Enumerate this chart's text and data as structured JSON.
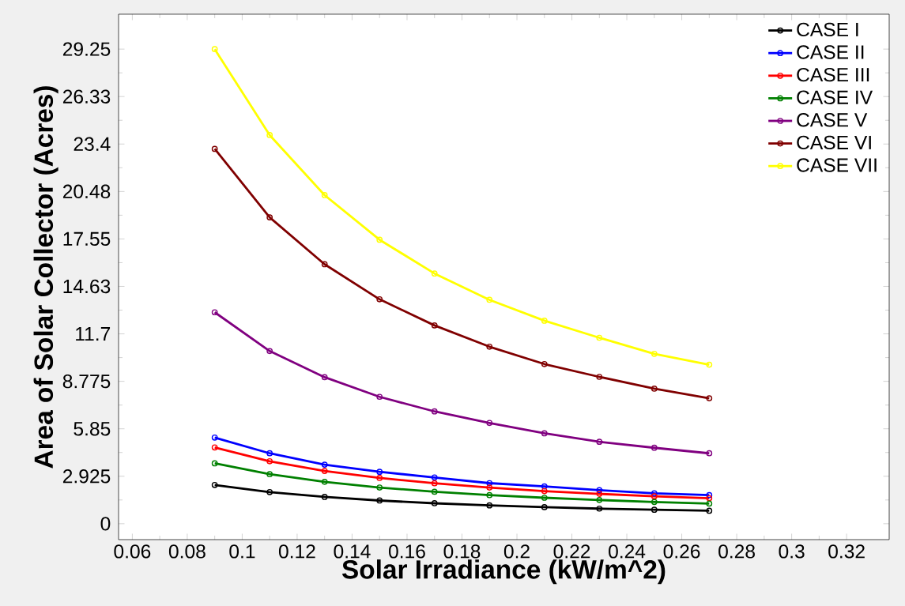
{
  "chart_data": {
    "type": "line",
    "xlabel": "Solar Irradiance (kW/m^2)",
    "ylabel": "Area of Solar Collector (Acres)",
    "x": [
      0.09,
      0.11,
      0.13,
      0.15,
      0.17,
      0.19,
      0.21,
      0.23,
      0.25,
      0.27
    ],
    "series": [
      {
        "name": "CASE I",
        "color": "#000000",
        "values": [
          2.39,
          1.95,
          1.65,
          1.43,
          1.26,
          1.13,
          1.02,
          0.93,
          0.86,
          0.8
        ]
      },
      {
        "name": "CASE II",
        "color": "#0000ff",
        "values": [
          5.31,
          4.34,
          3.64,
          3.2,
          2.85,
          2.5,
          2.3,
          2.07,
          1.87,
          1.76
        ]
      },
      {
        "name": "CASE III",
        "color": "#ff0000",
        "values": [
          4.7,
          3.85,
          3.25,
          2.82,
          2.49,
          2.23,
          2.01,
          1.84,
          1.69,
          1.57
        ]
      },
      {
        "name": "CASE IV",
        "color": "#008000",
        "values": [
          3.72,
          3.05,
          2.58,
          2.23,
          1.97,
          1.76,
          1.6,
          1.46,
          1.34,
          1.24
        ]
      },
      {
        "name": "CASE V",
        "color": "#800080",
        "values": [
          13.03,
          10.64,
          9.03,
          7.82,
          6.92,
          6.21,
          5.57,
          5.05,
          4.68,
          4.34
        ]
      },
      {
        "name": "CASE VI",
        "color": "#800000",
        "values": [
          23.1,
          18.88,
          15.99,
          13.83,
          12.22,
          10.91,
          9.84,
          9.05,
          8.32,
          7.73
        ]
      },
      {
        "name": "CASE VII",
        "color": "#ffff00",
        "values": [
          29.25,
          23.95,
          20.25,
          17.5,
          15.42,
          13.8,
          12.51,
          11.46,
          10.47,
          9.8
        ]
      }
    ],
    "xlim": [
      0.055,
      0.3355
    ],
    "ylim": [
      -0.98,
      31.4
    ],
    "xticks": [
      0.06,
      0.08,
      0.1,
      0.12,
      0.14,
      0.16,
      0.18,
      0.2,
      0.22,
      0.24,
      0.26,
      0.28,
      0.3,
      0.32
    ],
    "yticks": [
      0,
      2.925,
      5.85,
      8.775,
      11.7,
      {
        "value": 14.625,
        "label": "14.63"
      },
      17.55,
      {
        "value": 20.475,
        "label": "20.48"
      },
      23.4,
      {
        "value": 26.325,
        "label": "26.33"
      },
      29.25
    ],
    "legend": "top right",
    "marker": "circle",
    "line_style": "solid",
    "grid": false
  }
}
